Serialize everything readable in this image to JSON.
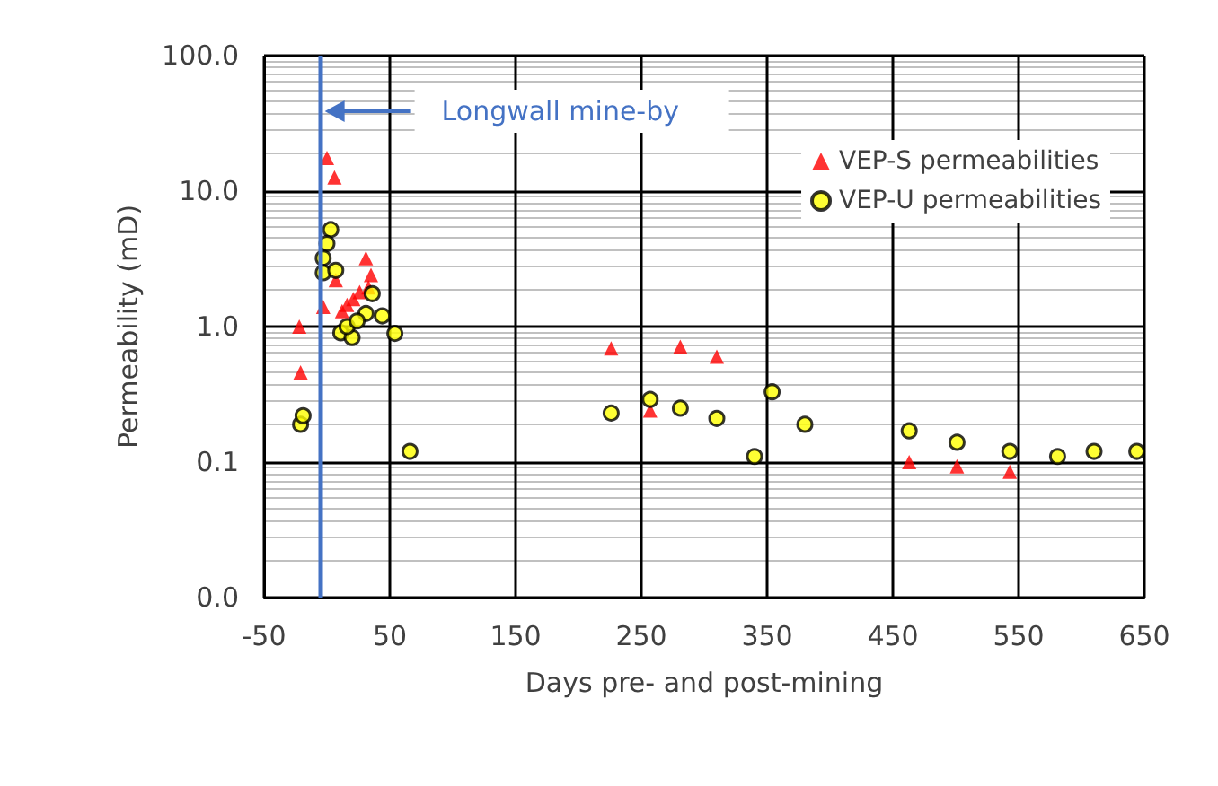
{
  "chart_data": {
    "type": "scatter",
    "xlabel": "Days pre- and post-mining",
    "ylabel": "Permeability (mD)",
    "xlim": [
      -50,
      650
    ],
    "xticks": [
      -50,
      50,
      150,
      250,
      350,
      450,
      550,
      650
    ],
    "ylim": [
      0.01,
      100
    ],
    "yticks": [
      {
        "value": 0.01,
        "label": "0.0"
      },
      {
        "value": 0.1,
        "label": "0.1"
      },
      {
        "value": 1,
        "label": "1.0"
      },
      {
        "value": 10,
        "label": "10.0"
      },
      {
        "value": 100,
        "label": "100.0"
      }
    ],
    "log": "y",
    "grid": true,
    "legend": "top right",
    "ref_lines": [
      {
        "axis": "x",
        "value": -6,
        "label": "Longwall mine-by",
        "color": "#4472c4"
      }
    ],
    "series": [
      {
        "name": "VEP-S permeabilities",
        "color": "#ff0000",
        "marker": "triangle",
        "x": [
          0,
          6,
          -22,
          -21,
          -3,
          31,
          35,
          7,
          12,
          16,
          21,
          26,
          33,
          226,
          281,
          310,
          257,
          463,
          501,
          543
        ],
        "values": [
          17.6,
          12.6,
          1.0,
          0.46,
          1.4,
          3.2,
          2.4,
          2.2,
          1.3,
          1.45,
          1.6,
          1.8,
          1.95,
          0.69,
          0.71,
          0.6,
          0.24,
          0.1,
          0.093,
          0.085
        ]
      },
      {
        "name": "VEP-U permeabilities",
        "color": "#ffff00",
        "marker": "circle",
        "x": [
          -21,
          -19,
          3,
          0,
          -3,
          -3,
          7,
          36,
          31,
          44,
          54,
          11,
          20,
          16,
          24,
          66,
          226,
          257,
          281,
          310,
          340,
          354,
          380,
          463,
          501,
          543,
          581,
          610,
          644
        ],
        "values": [
          0.19,
          0.22,
          5.2,
          4.1,
          3.2,
          2.5,
          2.6,
          1.75,
          1.25,
          1.2,
          0.89,
          0.9,
          0.83,
          1.0,
          1.1,
          0.12,
          0.23,
          0.29,
          0.25,
          0.21,
          0.11,
          0.33,
          0.19,
          0.17,
          0.14,
          0.12,
          0.11,
          0.12,
          0.12
        ]
      }
    ]
  }
}
